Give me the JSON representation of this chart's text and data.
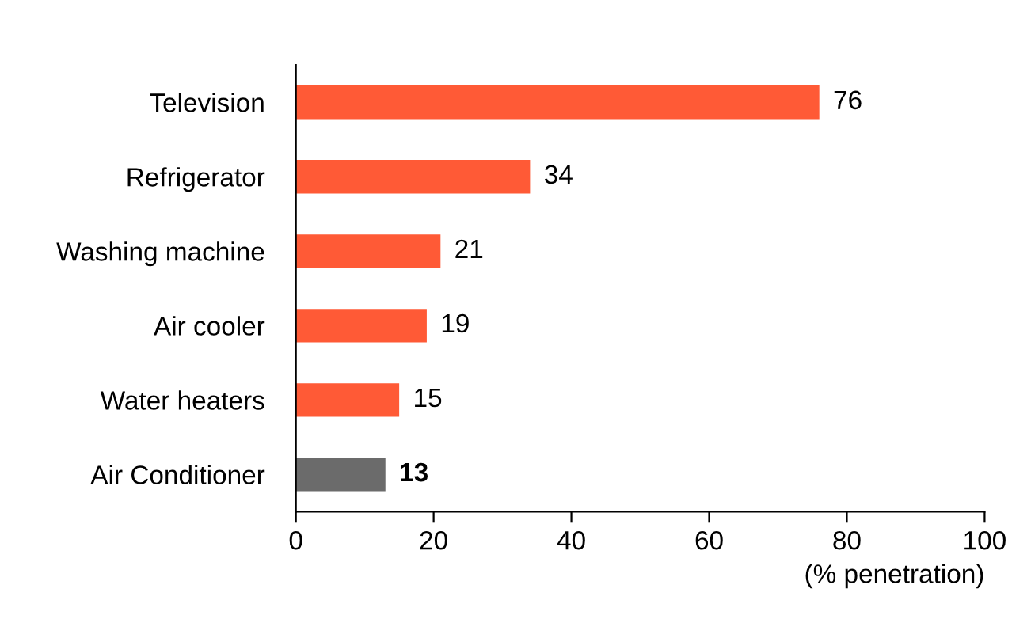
{
  "chart_data": {
    "type": "bar",
    "orientation": "horizontal",
    "categories": [
      "Television",
      "Refrigerator",
      "Washing machine",
      "Air cooler",
      "Water heaters",
      "Air Conditioner"
    ],
    "values": [
      76,
      34,
      21,
      19,
      15,
      13
    ],
    "colors": [
      "#ff5a36",
      "#ff5a36",
      "#ff5a36",
      "#ff5a36",
      "#ff5a36",
      "#6b6b6b"
    ],
    "xlabel": "(% penetration)",
    "xlim": [
      0,
      100
    ],
    "xticks": [
      0,
      20,
      40,
      60,
      80,
      100
    ],
    "data_labels": true,
    "grid": false,
    "legend": false
  }
}
